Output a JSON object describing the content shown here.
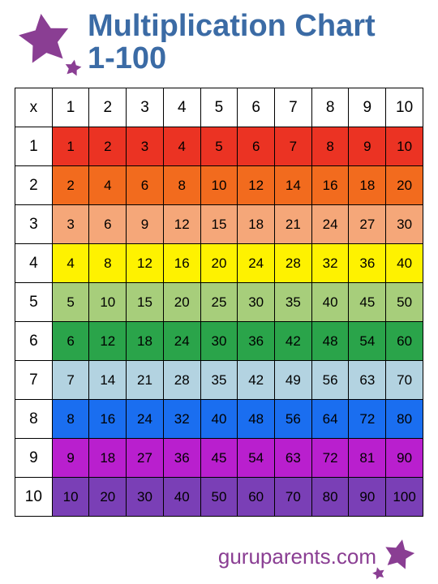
{
  "title": {
    "line1": "Multiplication Chart",
    "line2": "1-100",
    "color": "#3b6ba5",
    "fontsize": 38
  },
  "star_color": "#8a3e93",
  "chart": {
    "type": "table",
    "corner_label": "x",
    "col_headers": [
      "1",
      "2",
      "3",
      "4",
      "5",
      "6",
      "7",
      "8",
      "9",
      "10"
    ],
    "row_headers": [
      "1",
      "2",
      "3",
      "4",
      "5",
      "6",
      "7",
      "8",
      "9",
      "10"
    ],
    "rows": [
      [
        1,
        2,
        3,
        4,
        5,
        6,
        7,
        8,
        9,
        10
      ],
      [
        2,
        4,
        6,
        8,
        10,
        12,
        14,
        16,
        18,
        20
      ],
      [
        3,
        6,
        9,
        12,
        15,
        18,
        21,
        24,
        27,
        30
      ],
      [
        4,
        8,
        12,
        16,
        20,
        24,
        28,
        32,
        36,
        40
      ],
      [
        5,
        10,
        15,
        20,
        25,
        30,
        35,
        40,
        45,
        50
      ],
      [
        6,
        12,
        18,
        24,
        30,
        36,
        42,
        48,
        54,
        60
      ],
      [
        7,
        14,
        21,
        28,
        35,
        42,
        49,
        56,
        63,
        70
      ],
      [
        8,
        16,
        24,
        32,
        40,
        48,
        56,
        64,
        72,
        80
      ],
      [
        9,
        18,
        27,
        36,
        45,
        54,
        63,
        72,
        81,
        90
      ],
      [
        10,
        20,
        30,
        40,
        50,
        60,
        70,
        80,
        90,
        100
      ]
    ],
    "row_colors": [
      "#eb3323",
      "#f26b1e",
      "#f5a779",
      "#fef200",
      "#a7ce7b",
      "#2aa44a",
      "#b3d3e1",
      "#1a6ef0",
      "#b91fce",
      "#7a3fb6"
    ],
    "header_bg": "#ffffff",
    "border_color": "#000000",
    "cell_fontsize": 17,
    "header_fontsize": 19,
    "text_color": "#000000"
  },
  "footer": {
    "text": "guruparents.com",
    "color": "#8a3e93",
    "fontsize": 26
  }
}
